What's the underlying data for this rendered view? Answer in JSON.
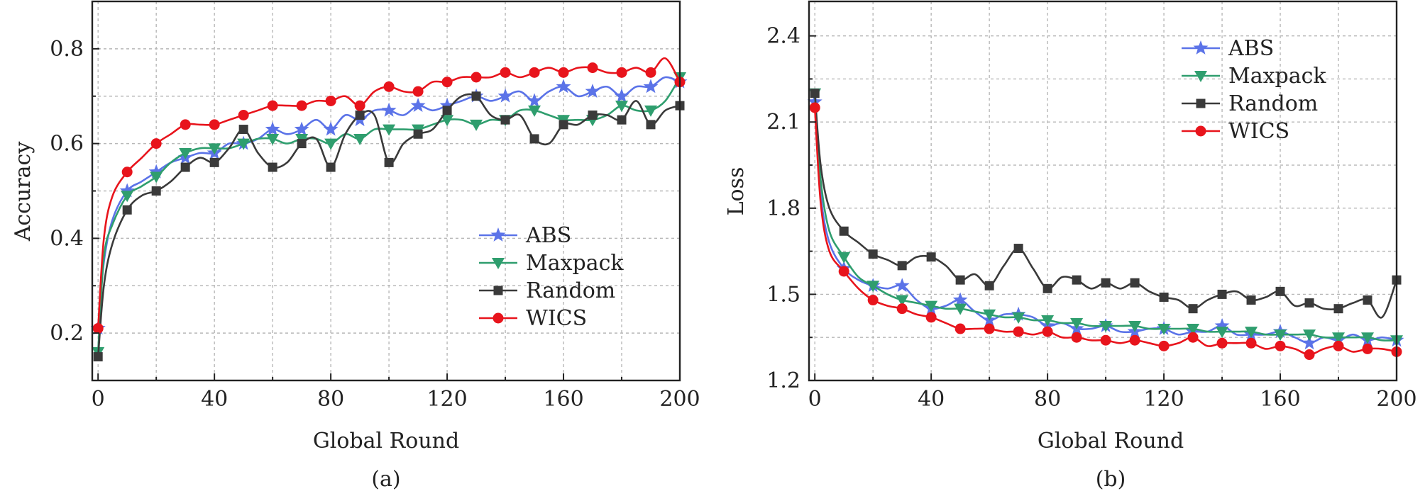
{
  "chart_data": [
    {
      "type": "line",
      "panel_label": "(a)",
      "xlabel": "Global Round",
      "ylabel": "Accuracy",
      "xlim": [
        -2,
        200
      ],
      "ylim": [
        0.1,
        0.9
      ],
      "xticks": [
        0,
        40,
        80,
        120,
        160,
        200
      ],
      "xtick_labels": [
        "0",
        "40",
        "80",
        "120",
        "160",
        "200"
      ],
      "yticks": [
        0.2,
        0.4,
        0.6,
        0.8
      ],
      "ytick_labels": [
        "0.2",
        "0.4",
        "0.6",
        "0.8"
      ],
      "grid": true,
      "legend_position": "lower-right",
      "series": [
        {
          "name": "ABS",
          "color": "#5b73e8",
          "marker": "star",
          "x": [
            0,
            2,
            5,
            10,
            15,
            20,
            25,
            30,
            35,
            40,
            45,
            50,
            55,
            60,
            65,
            70,
            75,
            80,
            85,
            90,
            95,
            100,
            105,
            110,
            115,
            120,
            125,
            130,
            135,
            140,
            145,
            150,
            155,
            160,
            165,
            170,
            175,
            180,
            185,
            190,
            195,
            200
          ],
          "y": [
            0.21,
            0.35,
            0.44,
            0.5,
            0.52,
            0.54,
            0.56,
            0.57,
            0.58,
            0.58,
            0.6,
            0.6,
            0.61,
            0.63,
            0.62,
            0.63,
            0.65,
            0.63,
            0.66,
            0.65,
            0.67,
            0.67,
            0.66,
            0.68,
            0.67,
            0.68,
            0.69,
            0.7,
            0.69,
            0.7,
            0.71,
            0.69,
            0.71,
            0.72,
            0.7,
            0.71,
            0.72,
            0.7,
            0.72,
            0.72,
            0.74,
            0.73
          ]
        },
        {
          "name": "Maxpack",
          "color": "#2f9e6e",
          "marker": "triangle-down",
          "x": [
            0,
            2,
            5,
            10,
            15,
            20,
            25,
            30,
            35,
            40,
            45,
            50,
            55,
            60,
            65,
            70,
            75,
            80,
            85,
            90,
            95,
            100,
            105,
            110,
            115,
            120,
            125,
            130,
            135,
            140,
            145,
            150,
            155,
            160,
            165,
            170,
            175,
            180,
            185,
            190,
            195,
            200
          ],
          "y": [
            0.16,
            0.36,
            0.43,
            0.49,
            0.51,
            0.53,
            0.56,
            0.58,
            0.59,
            0.59,
            0.59,
            0.6,
            0.61,
            0.61,
            0.6,
            0.61,
            0.61,
            0.6,
            0.62,
            0.61,
            0.63,
            0.63,
            0.63,
            0.63,
            0.64,
            0.65,
            0.65,
            0.64,
            0.65,
            0.65,
            0.67,
            0.67,
            0.66,
            0.65,
            0.65,
            0.65,
            0.66,
            0.68,
            0.67,
            0.67,
            0.69,
            0.74
          ]
        },
        {
          "name": "Random",
          "color": "#3a3a3a",
          "marker": "square",
          "x": [
            0,
            2,
            5,
            10,
            15,
            20,
            25,
            30,
            35,
            40,
            45,
            50,
            55,
            60,
            65,
            70,
            75,
            80,
            85,
            90,
            95,
            100,
            105,
            110,
            115,
            120,
            125,
            130,
            135,
            140,
            145,
            150,
            155,
            160,
            165,
            170,
            175,
            180,
            185,
            190,
            195,
            200
          ],
          "y": [
            0.15,
            0.3,
            0.39,
            0.46,
            0.49,
            0.5,
            0.52,
            0.55,
            0.57,
            0.56,
            0.59,
            0.63,
            0.58,
            0.55,
            0.56,
            0.6,
            0.61,
            0.55,
            0.62,
            0.66,
            0.66,
            0.56,
            0.6,
            0.62,
            0.63,
            0.67,
            0.7,
            0.7,
            0.66,
            0.65,
            0.66,
            0.61,
            0.6,
            0.64,
            0.64,
            0.66,
            0.66,
            0.65,
            0.69,
            0.64,
            0.67,
            0.68
          ]
        },
        {
          "name": "WICS",
          "color": "#e8141c",
          "marker": "circle",
          "x": [
            0,
            2,
            5,
            10,
            15,
            20,
            25,
            30,
            35,
            40,
            45,
            50,
            55,
            60,
            65,
            70,
            75,
            80,
            85,
            90,
            95,
            100,
            105,
            110,
            115,
            120,
            125,
            130,
            135,
            140,
            145,
            150,
            155,
            160,
            165,
            170,
            175,
            180,
            185,
            190,
            195,
            200
          ],
          "y": [
            0.21,
            0.4,
            0.49,
            0.54,
            0.57,
            0.6,
            0.62,
            0.64,
            0.64,
            0.64,
            0.65,
            0.66,
            0.67,
            0.68,
            0.68,
            0.68,
            0.69,
            0.69,
            0.7,
            0.68,
            0.71,
            0.72,
            0.71,
            0.71,
            0.73,
            0.73,
            0.74,
            0.74,
            0.74,
            0.75,
            0.74,
            0.75,
            0.76,
            0.75,
            0.76,
            0.76,
            0.75,
            0.75,
            0.76,
            0.75,
            0.78,
            0.73
          ]
        }
      ]
    },
    {
      "type": "line",
      "panel_label": "(b)",
      "xlabel": "Global Round",
      "ylabel": "Loss",
      "xlim": [
        -2,
        200
      ],
      "ylim": [
        1.2,
        2.52
      ],
      "xticks": [
        0,
        40,
        80,
        120,
        160,
        200
      ],
      "xtick_labels": [
        "0",
        "40",
        "80",
        "120",
        "160",
        "200"
      ],
      "yticks": [
        1.2,
        1.5,
        1.8,
        2.1,
        2.4
      ],
      "ytick_labels": [
        "1.2",
        "1.5",
        "1.8",
        "2.1",
        "2.4"
      ],
      "grid": true,
      "legend_position": "upper-right",
      "series": [
        {
          "name": "ABS",
          "color": "#5b73e8",
          "marker": "star",
          "x": [
            0,
            2,
            5,
            10,
            15,
            20,
            25,
            30,
            35,
            40,
            45,
            50,
            55,
            60,
            65,
            70,
            75,
            80,
            85,
            90,
            95,
            100,
            105,
            110,
            115,
            120,
            125,
            130,
            135,
            140,
            145,
            150,
            155,
            160,
            165,
            170,
            175,
            180,
            185,
            190,
            195,
            200
          ],
          "y": [
            2.17,
            1.85,
            1.68,
            1.59,
            1.55,
            1.53,
            1.52,
            1.53,
            1.48,
            1.45,
            1.46,
            1.48,
            1.44,
            1.41,
            1.43,
            1.43,
            1.42,
            1.39,
            1.4,
            1.38,
            1.38,
            1.39,
            1.37,
            1.37,
            1.38,
            1.38,
            1.36,
            1.37,
            1.37,
            1.39,
            1.36,
            1.36,
            1.36,
            1.37,
            1.35,
            1.33,
            1.35,
            1.34,
            1.36,
            1.34,
            1.35,
            1.34
          ]
        },
        {
          "name": "Maxpack",
          "color": "#2f9e6e",
          "marker": "triangle-down",
          "x": [
            0,
            2,
            5,
            10,
            15,
            20,
            25,
            30,
            35,
            40,
            45,
            50,
            55,
            60,
            65,
            70,
            75,
            80,
            85,
            90,
            95,
            100,
            105,
            110,
            115,
            120,
            125,
            130,
            135,
            140,
            145,
            150,
            155,
            160,
            165,
            170,
            175,
            180,
            185,
            190,
            195,
            200
          ],
          "y": [
            2.2,
            1.9,
            1.72,
            1.63,
            1.56,
            1.53,
            1.5,
            1.48,
            1.47,
            1.46,
            1.45,
            1.45,
            1.44,
            1.43,
            1.42,
            1.42,
            1.41,
            1.41,
            1.4,
            1.4,
            1.39,
            1.39,
            1.39,
            1.39,
            1.38,
            1.38,
            1.38,
            1.38,
            1.37,
            1.37,
            1.37,
            1.37,
            1.36,
            1.36,
            1.36,
            1.36,
            1.35,
            1.35,
            1.35,
            1.35,
            1.34,
            1.34
          ]
        },
        {
          "name": "Random",
          "color": "#3a3a3a",
          "marker": "square",
          "x": [
            0,
            2,
            5,
            10,
            15,
            20,
            25,
            30,
            35,
            40,
            45,
            50,
            55,
            60,
            65,
            70,
            75,
            80,
            85,
            90,
            95,
            100,
            105,
            110,
            115,
            120,
            125,
            130,
            135,
            140,
            145,
            150,
            155,
            160,
            165,
            170,
            175,
            180,
            185,
            190,
            195,
            200
          ],
          "y": [
            2.2,
            1.95,
            1.8,
            1.72,
            1.68,
            1.64,
            1.62,
            1.6,
            1.63,
            1.63,
            1.6,
            1.55,
            1.57,
            1.53,
            1.6,
            1.66,
            1.59,
            1.52,
            1.56,
            1.55,
            1.52,
            1.54,
            1.52,
            1.54,
            1.51,
            1.49,
            1.48,
            1.45,
            1.48,
            1.5,
            1.51,
            1.48,
            1.49,
            1.51,
            1.46,
            1.47,
            1.45,
            1.45,
            1.47,
            1.48,
            1.42,
            1.55
          ]
        },
        {
          "name": "WICS",
          "color": "#e8141c",
          "marker": "circle",
          "x": [
            0,
            2,
            5,
            10,
            15,
            20,
            25,
            30,
            35,
            40,
            45,
            50,
            55,
            60,
            65,
            70,
            75,
            80,
            85,
            90,
            95,
            100,
            105,
            110,
            115,
            120,
            125,
            130,
            135,
            140,
            145,
            150,
            155,
            160,
            165,
            170,
            175,
            180,
            185,
            190,
            195,
            200
          ],
          "y": [
            2.15,
            1.82,
            1.65,
            1.58,
            1.52,
            1.48,
            1.46,
            1.45,
            1.43,
            1.42,
            1.4,
            1.38,
            1.38,
            1.38,
            1.37,
            1.37,
            1.36,
            1.37,
            1.35,
            1.35,
            1.34,
            1.34,
            1.33,
            1.34,
            1.33,
            1.32,
            1.33,
            1.35,
            1.32,
            1.33,
            1.33,
            1.33,
            1.31,
            1.32,
            1.31,
            1.29,
            1.31,
            1.32,
            1.3,
            1.31,
            1.31,
            1.3
          ]
        }
      ]
    }
  ]
}
